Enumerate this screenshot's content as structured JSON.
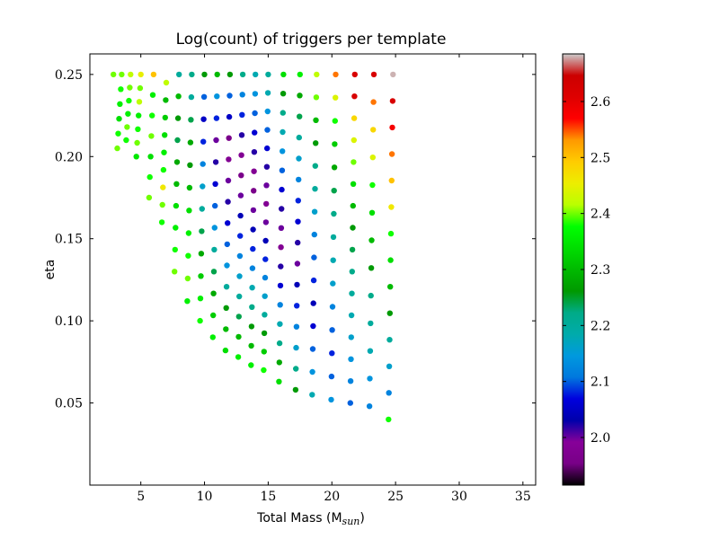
{
  "chart_data": {
    "type": "scatter",
    "title": "Log(count) of triggers per template",
    "xlabel_prefix": "Total Mass (M",
    "xlabel_sub": "sun",
    "xlabel_suffix": ")",
    "ylabel": "eta",
    "xlim": [
      1,
      36
    ],
    "ylim": [
      0,
      0.2625
    ],
    "xticks": [
      5,
      10,
      15,
      20,
      25,
      30,
      35
    ],
    "xtick_labels": [
      "5",
      "10",
      "15",
      "20",
      "25",
      "30",
      "35"
    ],
    "yticks": [
      0.05,
      0.1,
      0.15,
      0.2,
      0.25
    ],
    "ytick_labels": [
      "0.05",
      "0.10",
      "0.15",
      "0.20",
      "0.25"
    ],
    "colorbar": {
      "colormap": "nipy_spectral",
      "range": [
        1.915,
        2.685
      ],
      "ticks": [
        2.0,
        2.1,
        2.2,
        2.3,
        2.4,
        2.5,
        2.6
      ],
      "tick_labels": [
        "2.0",
        "2.1",
        "2.2",
        "2.3",
        "2.4",
        "2.5",
        "2.6"
      ]
    },
    "grid": false,
    "columns": [
      {
        "x": 2.85,
        "eta_top": 0.25,
        "eta_bottom": 0.25,
        "points": 1,
        "colors": [
          2.4
        ]
      },
      {
        "x": 3.5,
        "eta_top": 0.25,
        "eta_bottom": 0.205,
        "points": 6,
        "colors": [
          2.4,
          2.38,
          2.36,
          2.34,
          2.38,
          2.4
        ]
      },
      {
        "x": 4.2,
        "eta_top": 0.25,
        "eta_bottom": 0.21,
        "points": 6,
        "colors": [
          2.42,
          2.4,
          2.38,
          2.36,
          2.4,
          2.38
        ]
      },
      {
        "x": 5.0,
        "eta_top": 0.25,
        "eta_bottom": 0.2,
        "points": 7,
        "colors": [
          2.45,
          2.4,
          2.42,
          2.36,
          2.38,
          2.4,
          2.35
        ]
      },
      {
        "x": 6.0,
        "eta_top": 0.25,
        "eta_bottom": 0.175,
        "points": 7,
        "colors": [
          2.5,
          2.36,
          2.38,
          2.4,
          2.34,
          2.38,
          2.4
        ]
      },
      {
        "x": 7.0,
        "eta_top": 0.245,
        "eta_bottom": 0.16,
        "points": 9,
        "colors": [
          2.42,
          2.3,
          2.32,
          2.34,
          2.36,
          2.38,
          2.46,
          2.4,
          2.38
        ]
      },
      {
        "x": 8.0,
        "eta_top": 0.25,
        "eta_bottom": 0.13,
        "points": 10,
        "colors": [
          2.2,
          2.3,
          2.26,
          2.24,
          2.28,
          2.3,
          2.34,
          2.36,
          2.38,
          2.4
        ]
      },
      {
        "x": 9.0,
        "eta_top": 0.25,
        "eta_bottom": 0.112,
        "points": 11,
        "colors": [
          2.22,
          2.2,
          2.24,
          2.28,
          2.26,
          2.3,
          2.34,
          2.36,
          2.38,
          2.4,
          2.36
        ]
      },
      {
        "x": 10.0,
        "eta_top": 0.25,
        "eta_bottom": 0.1,
        "points": 12,
        "colors": [
          2.26,
          2.1,
          2.05,
          2.08,
          2.12,
          2.16,
          2.2,
          2.24,
          2.28,
          2.32,
          2.36,
          2.38
        ]
      },
      {
        "x": 11.0,
        "eta_top": 0.25,
        "eta_bottom": 0.09,
        "points": 13,
        "colors": [
          2.3,
          2.14,
          2.08,
          2.0,
          2.02,
          2.06,
          2.1,
          2.14,
          2.2,
          2.24,
          2.28,
          2.32,
          2.36
        ]
      },
      {
        "x": 12.0,
        "eta_top": 0.25,
        "eta_bottom": 0.082,
        "points": 14,
        "colors": [
          2.26,
          2.1,
          2.05,
          1.96,
          1.98,
          2.0,
          2.02,
          2.06,
          2.1,
          2.14,
          2.2,
          2.26,
          2.3,
          2.34
        ]
      },
      {
        "x": 13.0,
        "eta_top": 0.25,
        "eta_bottom": 0.078,
        "points": 15,
        "colors": [
          2.22,
          2.12,
          2.08,
          2.02,
          1.98,
          1.96,
          2.0,
          2.04,
          2.08,
          2.12,
          2.16,
          2.2,
          2.24,
          2.3,
          2.36
        ]
      },
      {
        "x": 14.0,
        "eta_top": 0.25,
        "eta_bottom": 0.073,
        "points": 16,
        "colors": [
          2.18,
          2.14,
          2.1,
          2.06,
          2.02,
          1.98,
          1.96,
          2.0,
          2.04,
          2.08,
          2.12,
          2.18,
          2.22,
          2.26,
          2.3,
          2.36
        ]
      },
      {
        "x": 15.0,
        "eta_top": 0.25,
        "eta_bottom": 0.07,
        "points": 17,
        "colors": [
          2.2,
          2.18,
          2.14,
          2.1,
          2.06,
          2.02,
          2.0,
          1.98,
          2.0,
          2.04,
          2.08,
          2.12,
          2.16,
          2.2,
          2.26,
          2.32,
          2.38
        ]
      },
      {
        "x": 16.2,
        "eta_top": 0.25,
        "eta_bottom": 0.063,
        "points": 17,
        "colors": [
          2.34,
          2.26,
          2.22,
          2.18,
          2.14,
          2.1,
          2.06,
          2.02,
          2.0,
          1.98,
          2.02,
          2.06,
          2.12,
          2.18,
          2.22,
          2.28,
          2.34
        ]
      },
      {
        "x": 17.5,
        "eta_top": 0.25,
        "eta_bottom": 0.058,
        "points": 16,
        "colors": [
          2.36,
          2.28,
          2.24,
          2.2,
          2.16,
          2.12,
          2.08,
          2.06,
          2.02,
          2.0,
          2.04,
          2.08,
          2.12,
          2.16,
          2.22,
          2.26
        ]
      },
      {
        "x": 18.8,
        "eta_top": 0.25,
        "eta_bottom": 0.055,
        "points": 15,
        "colors": [
          2.42,
          2.4,
          2.3,
          2.26,
          2.22,
          2.2,
          2.16,
          2.12,
          2.1,
          2.08,
          2.04,
          2.06,
          2.1,
          2.14,
          2.18
        ]
      },
      {
        "x": 20.3,
        "eta_top": 0.25,
        "eta_bottom": 0.052,
        "points": 15,
        "colors": [
          2.54,
          2.44,
          2.38,
          2.32,
          2.28,
          2.24,
          2.22,
          2.2,
          2.18,
          2.16,
          2.12,
          2.1,
          2.08,
          2.1,
          2.14
        ]
      },
      {
        "x": 21.8,
        "eta_top": 0.25,
        "eta_bottom": 0.05,
        "points": 16,
        "colors": [
          2.62,
          2.62,
          2.48,
          2.44,
          2.4,
          2.34,
          2.3,
          2.26,
          2.24,
          2.22,
          2.2,
          2.18,
          2.16,
          2.14,
          2.12,
          2.1
        ]
      },
      {
        "x": 23.3,
        "eta_top": 0.25,
        "eta_bottom": 0.048,
        "points": 13,
        "colors": [
          2.62,
          2.54,
          2.48,
          2.44,
          2.38,
          2.34,
          2.3,
          2.26,
          2.22,
          2.2,
          2.18,
          2.14,
          2.12
        ]
      },
      {
        "x": 24.8,
        "eta_top": 0.25,
        "eta_bottom": 0.04,
        "points": 14,
        "colors": [
          2.68,
          2.62,
          2.58,
          2.54,
          2.5,
          2.46,
          2.38,
          2.34,
          2.3,
          2.26,
          2.2,
          2.16,
          2.12,
          2.38
        ]
      }
    ]
  }
}
